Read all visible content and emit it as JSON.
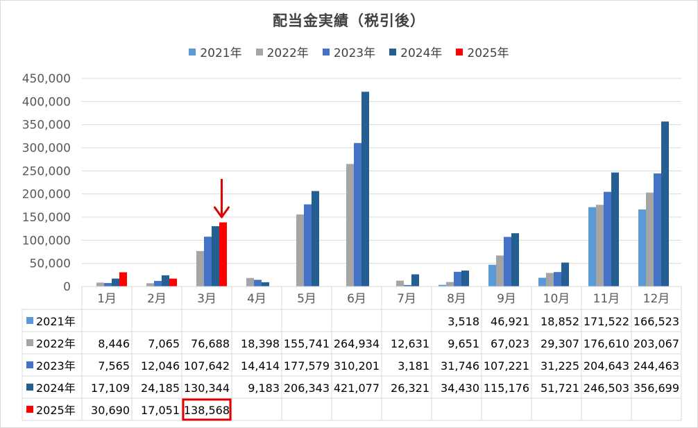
{
  "chart_data": {
    "type": "bar",
    "title": "配当金実績（税引後）",
    "categories": [
      "1月",
      "2月",
      "3月",
      "4月",
      "5月",
      "6月",
      "7月",
      "8月",
      "9月",
      "10月",
      "11月",
      "12月"
    ],
    "ylim": [
      0,
      450000
    ],
    "yticks": [
      "0",
      "50,000",
      "100,000",
      "150,000",
      "200,000",
      "250,000",
      "300,000",
      "350,000",
      "400,000",
      "450,000"
    ],
    "grid": true,
    "legend_position": "top",
    "series": [
      {
        "name": "2021年",
        "color": "#5b9bd5",
        "values": [
          null,
          null,
          null,
          null,
          null,
          null,
          null,
          3518,
          46921,
          18852,
          171522,
          166523
        ],
        "labels": [
          "",
          "",
          "",
          "",
          "",
          "",
          "",
          "3,518",
          "46,921",
          "18,852",
          "171,522",
          "166,523"
        ]
      },
      {
        "name": "2022年",
        "color": "#a5a5a5",
        "values": [
          8446,
          7065,
          76688,
          18398,
          155741,
          264934,
          12631,
          9651,
          67023,
          29307,
          176610,
          203067
        ],
        "labels": [
          "8,446",
          "7,065",
          "76,688",
          "18,398",
          "155,741",
          "264,934",
          "12,631",
          "9,651",
          "67,023",
          "29,307",
          "176,610",
          "203,067"
        ]
      },
      {
        "name": "2023年",
        "color": "#4472c4",
        "values": [
          7565,
          12046,
          107642,
          14414,
          177579,
          310201,
          3181,
          31746,
          107221,
          31225,
          204643,
          244463
        ],
        "labels": [
          "7,565",
          "12,046",
          "107,642",
          "14,414",
          "177,579",
          "310,201",
          "3,181",
          "31,746",
          "107,221",
          "31,225",
          "204,643",
          "244,463"
        ]
      },
      {
        "name": "2024年",
        "color": "#255e91",
        "values": [
          17109,
          24185,
          130344,
          9183,
          206343,
          421077,
          26321,
          34430,
          115176,
          51721,
          246503,
          356699
        ],
        "labels": [
          "17,109",
          "24,185",
          "130,344",
          "9,183",
          "206,343",
          "421,077",
          "26,321",
          "34,430",
          "115,176",
          "51,721",
          "246,503",
          "356,699"
        ]
      },
      {
        "name": "2025年",
        "color": "#ff0000",
        "values": [
          30690,
          17051,
          138568,
          null,
          null,
          null,
          null,
          null,
          null,
          null,
          null,
          null
        ],
        "labels": [
          "30,690",
          "17,051",
          "138,568",
          "",
          "",
          "",
          "",
          "",
          "",
          "",
          "",
          ""
        ]
      }
    ],
    "annotations": {
      "arrow_category": "3月",
      "highlighted_cell": {
        "series": "2025年",
        "category": "3月"
      },
      "arrow_color": "#e00000"
    }
  }
}
